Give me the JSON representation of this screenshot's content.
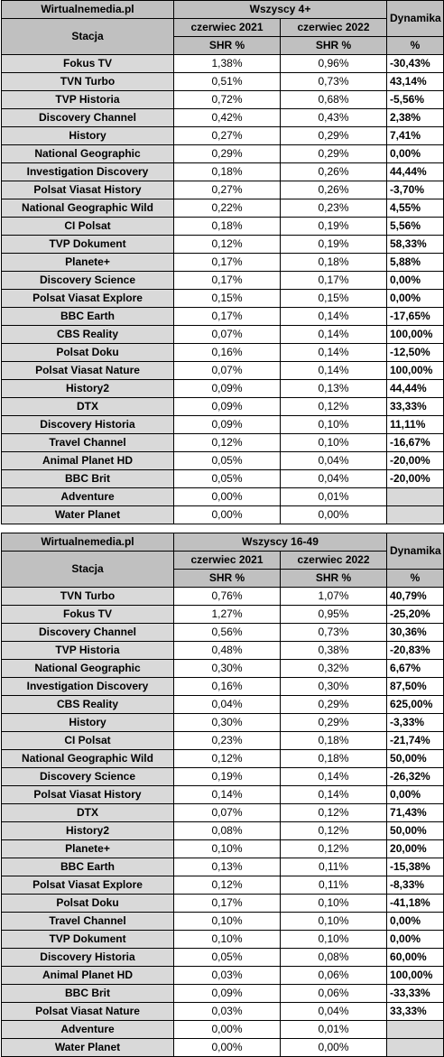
{
  "tables": [
    {
      "source": "Wirtualnemedia.pl",
      "group": "Wszyscy 4+",
      "dynamics_header": "Dynamika",
      "station_header": "Stacja",
      "period1": "czerwiec 2021",
      "period2": "czerwiec 2022",
      "metric": "SHR %",
      "pct": "%",
      "rows": [
        {
          "station": "Fokus TV",
          "v1": "1,38%",
          "v2": "0,96%",
          "dyn": "-30,43%"
        },
        {
          "station": "TVN Turbo",
          "v1": "0,51%",
          "v2": "0,73%",
          "dyn": "43,14%"
        },
        {
          "station": "TVP Historia",
          "v1": "0,72%",
          "v2": "0,68%",
          "dyn": "-5,56%"
        },
        {
          "station": "Discovery Channel",
          "v1": "0,42%",
          "v2": "0,43%",
          "dyn": "2,38%"
        },
        {
          "station": "History",
          "v1": "0,27%",
          "v2": "0,29%",
          "dyn": "7,41%"
        },
        {
          "station": "National Geographic",
          "v1": "0,29%",
          "v2": "0,29%",
          "dyn": "0,00%"
        },
        {
          "station": "Investigation Discovery",
          "v1": "0,18%",
          "v2": "0,26%",
          "dyn": "44,44%"
        },
        {
          "station": "Polsat Viasat History",
          "v1": "0,27%",
          "v2": "0,26%",
          "dyn": "-3,70%"
        },
        {
          "station": "National Geographic Wild",
          "v1": "0,22%",
          "v2": "0,23%",
          "dyn": "4,55%"
        },
        {
          "station": "CI Polsat",
          "v1": "0,18%",
          "v2": "0,19%",
          "dyn": "5,56%"
        },
        {
          "station": "TVP Dokument",
          "v1": "0,12%",
          "v2": "0,19%",
          "dyn": "58,33%"
        },
        {
          "station": "Planete+",
          "v1": "0,17%",
          "v2": "0,18%",
          "dyn": "5,88%"
        },
        {
          "station": "Discovery Science",
          "v1": "0,17%",
          "v2": "0,17%",
          "dyn": "0,00%"
        },
        {
          "station": "Polsat Viasat Explore",
          "v1": "0,15%",
          "v2": "0,15%",
          "dyn": "0,00%"
        },
        {
          "station": "BBC Earth",
          "v1": "0,17%",
          "v2": "0,14%",
          "dyn": "-17,65%"
        },
        {
          "station": "CBS Reality",
          "v1": "0,07%",
          "v2": "0,14%",
          "dyn": "100,00%"
        },
        {
          "station": "Polsat Doku",
          "v1": "0,16%",
          "v2": "0,14%",
          "dyn": "-12,50%"
        },
        {
          "station": "Polsat Viasat Nature",
          "v1": "0,07%",
          "v2": "0,14%",
          "dyn": "100,00%"
        },
        {
          "station": "History2",
          "v1": "0,09%",
          "v2": "0,13%",
          "dyn": "44,44%"
        },
        {
          "station": "DTX",
          "v1": "0,09%",
          "v2": "0,12%",
          "dyn": "33,33%"
        },
        {
          "station": "Discovery Historia",
          "v1": "0,09%",
          "v2": "0,10%",
          "dyn": "11,11%"
        },
        {
          "station": "Travel Channel",
          "v1": "0,12%",
          "v2": "0,10%",
          "dyn": "-16,67%"
        },
        {
          "station": "Animal Planet HD",
          "v1": "0,05%",
          "v2": "0,04%",
          "dyn": "-20,00%"
        },
        {
          "station": "BBC Brit",
          "v1": "0,05%",
          "v2": "0,04%",
          "dyn": "-20,00%"
        },
        {
          "station": "Adventure",
          "v1": "0,00%",
          "v2": "0,01%",
          "dyn": ""
        },
        {
          "station": "Water Planet",
          "v1": "0,00%",
          "v2": "0,00%",
          "dyn": ""
        }
      ]
    },
    {
      "source": "Wirtualnemedia.pl",
      "group": "Wszyscy 16-49",
      "dynamics_header": "Dynamika",
      "station_header": "Stacja",
      "period1": "czerwiec 2021",
      "period2": "czerwiec 2022",
      "metric": "SHR %",
      "pct": "%",
      "rows": [
        {
          "station": "TVN Turbo",
          "v1": "0,76%",
          "v2": "1,07%",
          "dyn": "40,79%"
        },
        {
          "station": "Fokus TV",
          "v1": "1,27%",
          "v2": "0,95%",
          "dyn": "-25,20%"
        },
        {
          "station": "Discovery Channel",
          "v1": "0,56%",
          "v2": "0,73%",
          "dyn": "30,36%"
        },
        {
          "station": "TVP Historia",
          "v1": "0,48%",
          "v2": "0,38%",
          "dyn": "-20,83%"
        },
        {
          "station": "National Geographic",
          "v1": "0,30%",
          "v2": "0,32%",
          "dyn": "6,67%"
        },
        {
          "station": "Investigation Discovery",
          "v1": "0,16%",
          "v2": "0,30%",
          "dyn": "87,50%"
        },
        {
          "station": "CBS Reality",
          "v1": "0,04%",
          "v2": "0,29%",
          "dyn": "625,00%"
        },
        {
          "station": "History",
          "v1": "0,30%",
          "v2": "0,29%",
          "dyn": "-3,33%"
        },
        {
          "station": "CI Polsat",
          "v1": "0,23%",
          "v2": "0,18%",
          "dyn": "-21,74%"
        },
        {
          "station": "National Geographic Wild",
          "v1": "0,12%",
          "v2": "0,18%",
          "dyn": "50,00%"
        },
        {
          "station": "Discovery Science",
          "v1": "0,19%",
          "v2": "0,14%",
          "dyn": "-26,32%"
        },
        {
          "station": "Polsat Viasat History",
          "v1": "0,14%",
          "v2": "0,14%",
          "dyn": "0,00%"
        },
        {
          "station": "DTX",
          "v1": "0,07%",
          "v2": "0,12%",
          "dyn": "71,43%"
        },
        {
          "station": "History2",
          "v1": "0,08%",
          "v2": "0,12%",
          "dyn": "50,00%"
        },
        {
          "station": "Planete+",
          "v1": "0,10%",
          "v2": "0,12%",
          "dyn": "20,00%"
        },
        {
          "station": "BBC Earth",
          "v1": "0,13%",
          "v2": "0,11%",
          "dyn": "-15,38%"
        },
        {
          "station": "Polsat Viasat Explore",
          "v1": "0,12%",
          "v2": "0,11%",
          "dyn": "-8,33%"
        },
        {
          "station": "Polsat Doku",
          "v1": "0,17%",
          "v2": "0,10%",
          "dyn": "-41,18%"
        },
        {
          "station": "Travel Channel",
          "v1": "0,10%",
          "v2": "0,10%",
          "dyn": "0,00%"
        },
        {
          "station": "TVP Dokument",
          "v1": "0,10%",
          "v2": "0,10%",
          "dyn": "0,00%"
        },
        {
          "station": "Discovery Historia",
          "v1": "0,05%",
          "v2": "0,08%",
          "dyn": "60,00%"
        },
        {
          "station": "Animal Planet HD",
          "v1": "0,03%",
          "v2": "0,06%",
          "dyn": "100,00%"
        },
        {
          "station": "BBC Brit",
          "v1": "0,09%",
          "v2": "0,06%",
          "dyn": "-33,33%"
        },
        {
          "station": "Polsat Viasat Nature",
          "v1": "0,03%",
          "v2": "0,04%",
          "dyn": "33,33%"
        },
        {
          "station": "Adventure",
          "v1": "0,00%",
          "v2": "0,01%",
          "dyn": ""
        },
        {
          "station": "Water Planet",
          "v1": "0,00%",
          "v2": "0,00%",
          "dyn": ""
        }
      ]
    }
  ]
}
